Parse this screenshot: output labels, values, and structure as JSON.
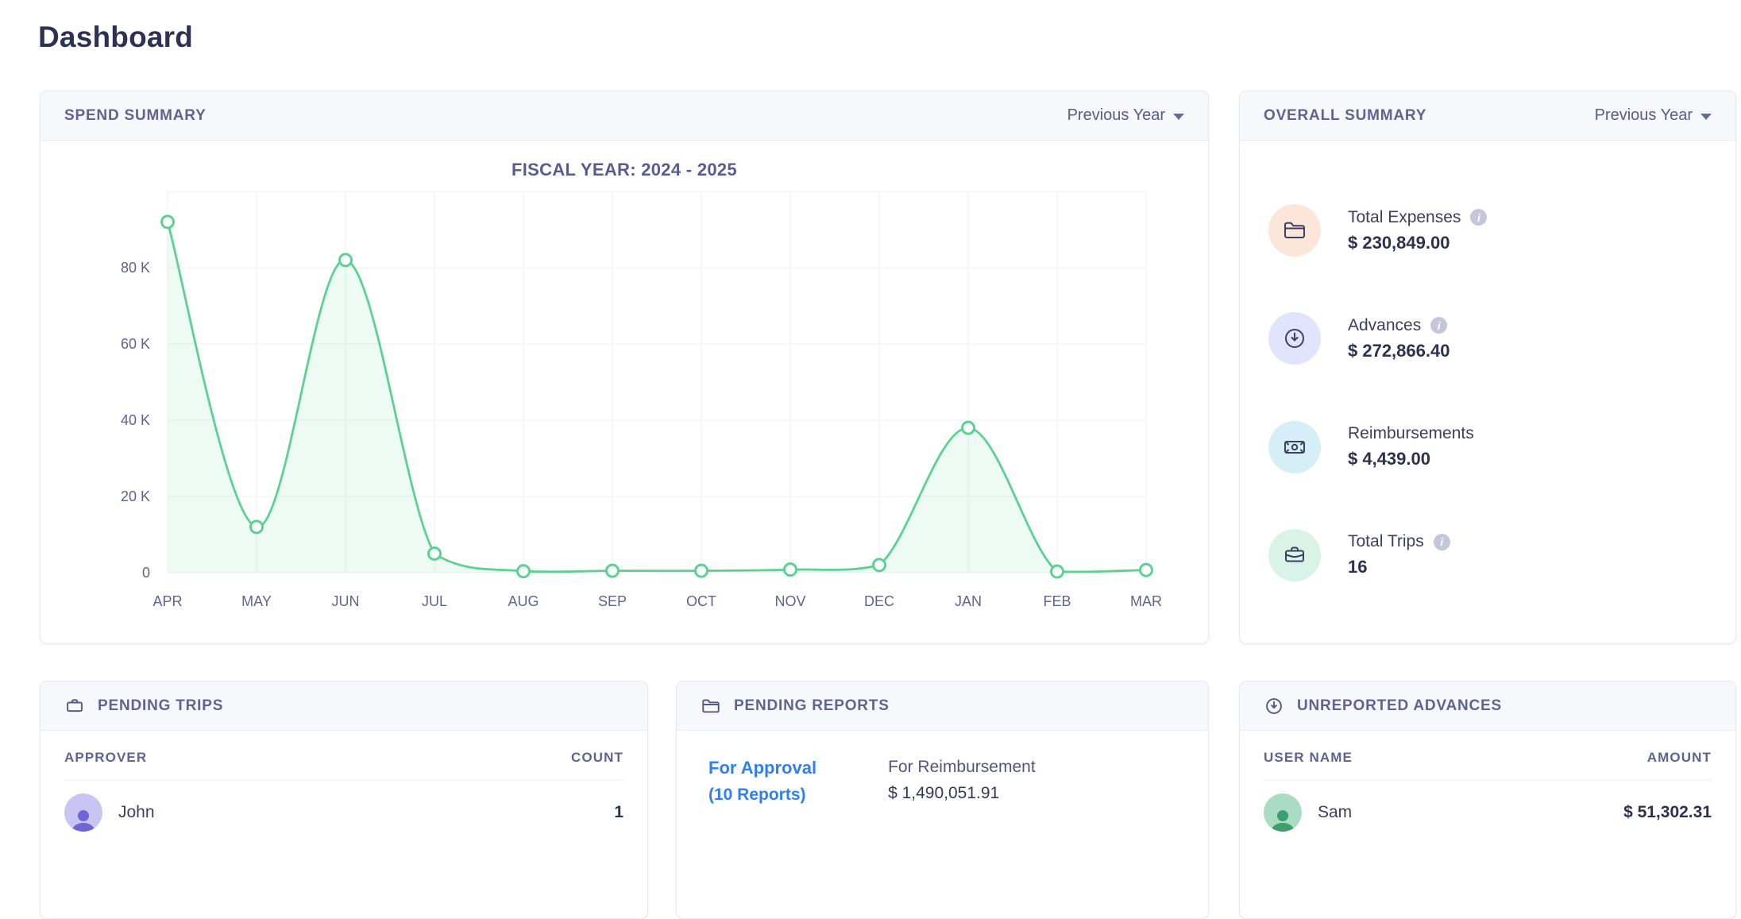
{
  "page": {
    "title": "Dashboard"
  },
  "colors": {
    "accent_blue": "#2f80f0",
    "chart_line_green": "#5bd291",
    "chart_fill_green": "rgba(91,210,145,0.10)",
    "header_band": "#f7f8fc",
    "muted_indigo": "#5f6390",
    "tint_peach": "#fce6d9",
    "tint_lavender": "#e0e4fc",
    "tint_cyan": "#d6eff6",
    "tint_green": "#d9f3e6"
  },
  "spend_summary": {
    "title": "SPEND SUMMARY",
    "filter_label": "Previous Year"
  },
  "chart_data": {
    "type": "area",
    "title": "FISCAL YEAR: 2024 - 2025",
    "categories": [
      "APR",
      "MAY",
      "JUN",
      "JUL",
      "AUG",
      "SEP",
      "OCT",
      "NOV",
      "DEC",
      "JAN",
      "FEB",
      "MAR"
    ],
    "values": [
      92000,
      12000,
      82000,
      5000,
      400,
      500,
      500,
      800,
      2000,
      38000,
      300,
      700
    ],
    "ylim": [
      0,
      100000
    ],
    "ytick_step": 20000,
    "ytick_labels": [
      "0",
      "20 K",
      "40 K",
      "60 K",
      "80 K"
    ],
    "xlabel": "",
    "ylabel": "",
    "grid": true,
    "legend": false,
    "marker": "open-circle"
  },
  "overall_summary": {
    "title": "OVERALL SUMMARY",
    "filter_label": "Previous Year",
    "items": [
      {
        "label": "Total Expenses",
        "value": "$ 230,849.00",
        "icon": "folder-icon",
        "tint": "#fce6d9",
        "has_info": true
      },
      {
        "label": "Advances",
        "value": "$ 272,866.40",
        "icon": "clock-icon",
        "tint": "#e0e4fc",
        "has_info": true
      },
      {
        "label": "Reimbursements",
        "value": "$ 4,439.00",
        "icon": "banknote-icon",
        "tint": "#d6eff6",
        "has_info": false
      },
      {
        "label": "Total Trips",
        "value": "16",
        "icon": "briefcase-icon",
        "tint": "#d9f3e6",
        "has_info": true
      }
    ]
  },
  "pending_trips": {
    "title": "PENDING TRIPS",
    "columns": [
      "APPROVER",
      "COUNT"
    ],
    "rows": [
      {
        "name": "John",
        "count": "1"
      }
    ]
  },
  "pending_reports": {
    "title": "PENDING REPORTS",
    "approval_label": "For Approval",
    "approval_sub": "(10 Reports)",
    "reimbursement_label": "For Reimbursement",
    "reimbursement_value": "$ 1,490,051.91"
  },
  "unreported_advances": {
    "title": "UNREPORTED ADVANCES",
    "columns": [
      "USER NAME",
      "AMOUNT"
    ],
    "rows": [
      {
        "name": "Sam",
        "amount": "$ 51,302.31"
      }
    ]
  }
}
